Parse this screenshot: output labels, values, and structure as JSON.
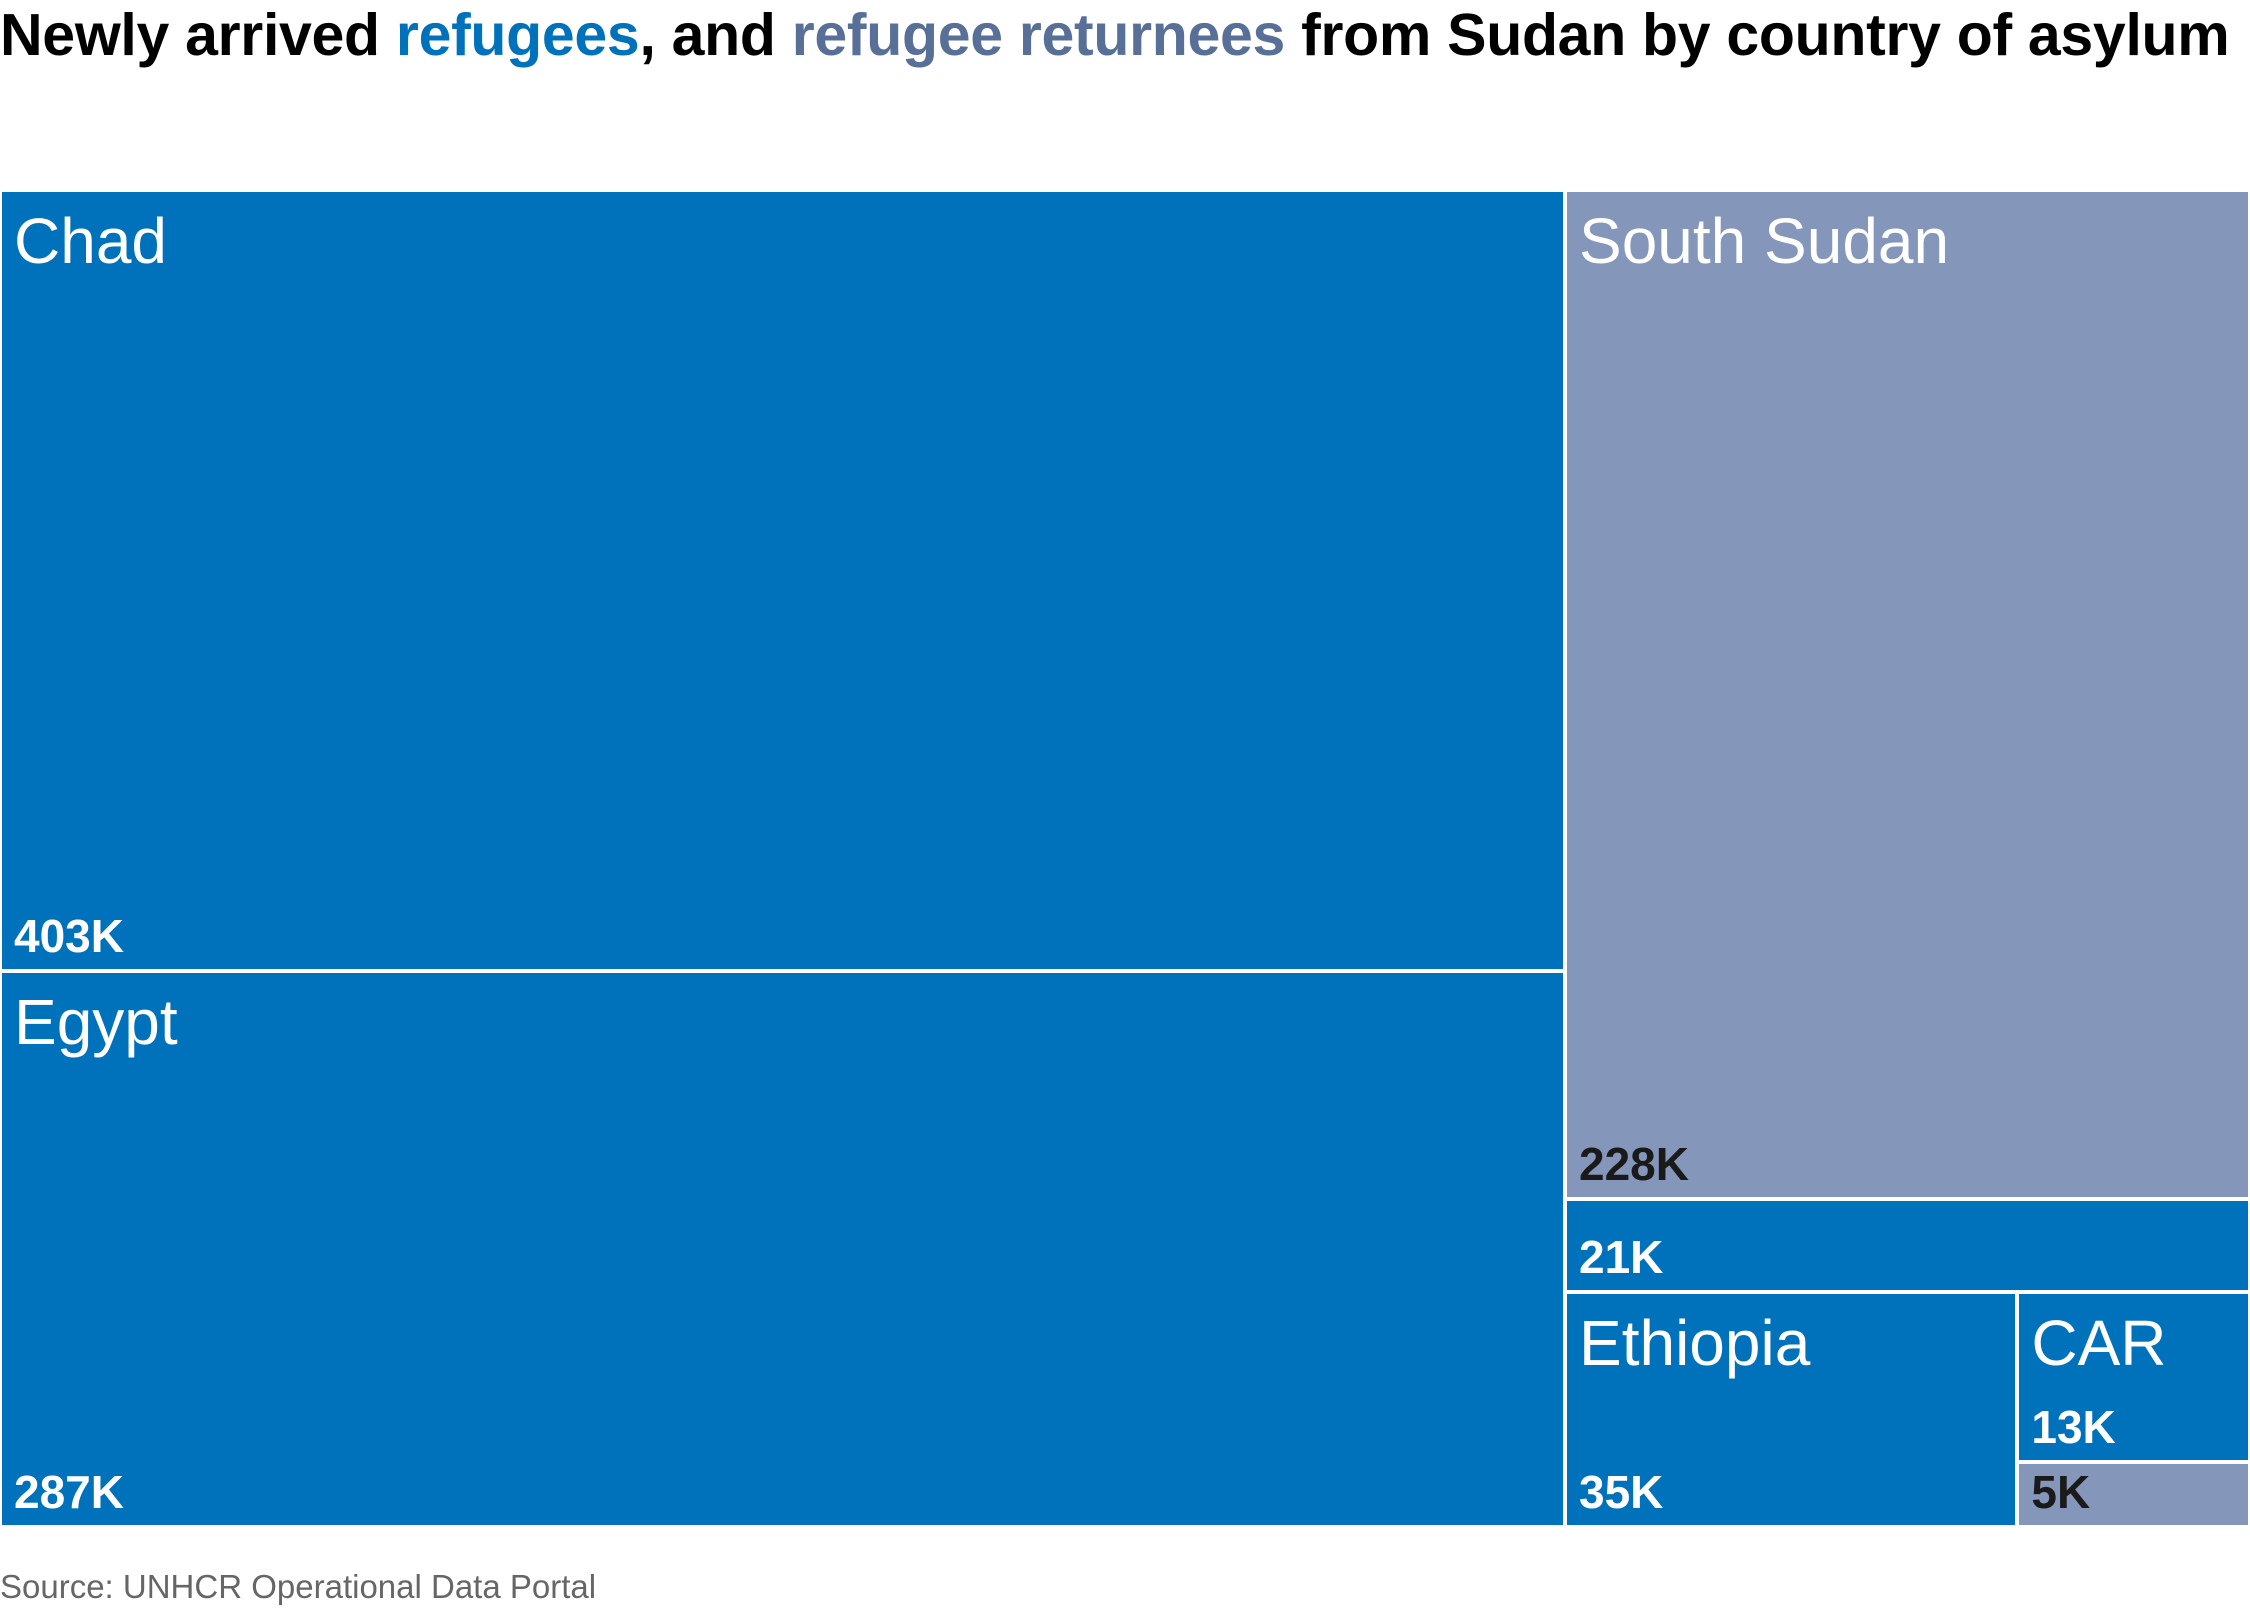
{
  "title": {
    "part1": "Newly arrived ",
    "highlight_refugees": "refugees",
    "part2": ", and ",
    "highlight_returnees": "refugee returnees",
    "part3": " from Sudan by country of asylum"
  },
  "colors": {
    "refugees": "#0072bc",
    "returnees": "#8496ba",
    "title_refugees": "#0072bc",
    "title_returnees": "#586f98",
    "label_on_refugees": "#ffffff",
    "label_on_returnees": "#1a1a1a"
  },
  "chart_data": {
    "type": "treemap",
    "title": "Newly arrived refugees, and refugee returnees from Sudan by country of asylum",
    "series": [
      {
        "name": "refugees"
      },
      {
        "name": "refugee returnees"
      }
    ],
    "groups": [
      {
        "country": "Chad",
        "items": [
          {
            "category": "refugees",
            "value": 403000,
            "label": "403K"
          }
        ]
      },
      {
        "country": "Egypt",
        "items": [
          {
            "category": "refugees",
            "value": 287000,
            "label": "287K"
          }
        ]
      },
      {
        "country": "South Sudan",
        "items": [
          {
            "category": "refugee returnees",
            "value": 228000,
            "label": "228K"
          },
          {
            "category": "refugees",
            "value": 21000,
            "label": "21K"
          }
        ]
      },
      {
        "country": "Ethiopia",
        "items": [
          {
            "category": "refugees",
            "value": 35000,
            "label": "35K"
          }
        ]
      },
      {
        "country": "CAR",
        "items": [
          {
            "category": "refugees",
            "value": 13000,
            "label": "13K"
          },
          {
            "category": "refugee returnees",
            "value": 5000,
            "label": "5K"
          }
        ]
      }
    ]
  },
  "source": "Source: UNHCR Operational Data Portal"
}
